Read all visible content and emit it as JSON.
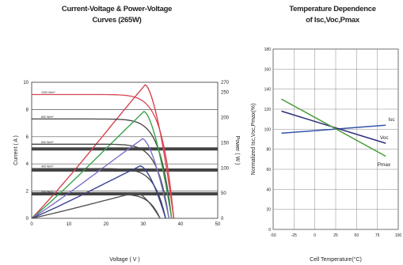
{
  "chart_data": [
    {
      "type": "line",
      "title_line1": "Current-Voltage & Power-Voltage",
      "title_line2": "Curves (265W)",
      "xlabel": "Voltage ( V )",
      "ylabel": "Current ( A )",
      "y2label": "Power ( W )",
      "xlim": [
        0,
        50
      ],
      "ylim": [
        0,
        10
      ],
      "y2lim": [
        0,
        270
      ],
      "xticks": [
        "0",
        "10",
        "20",
        "30",
        "40",
        "50"
      ],
      "yticks": [
        "0",
        "2",
        "4",
        "6",
        "8",
        "10"
      ],
      "y2ticks": [
        "0",
        "50",
        "100",
        "150",
        "200",
        "250",
        "270"
      ],
      "series": [
        {
          "name": "1000 W/m²",
          "color": "#d64550",
          "power_color": "#d64550",
          "isc": 9.1,
          "voc": 38.2,
          "vmp": 30.5,
          "pmax": 265
        },
        {
          "name": "800 W/m²",
          "color": "#444444",
          "power_color": "#3aa34a",
          "isc": 7.3,
          "voc": 37.6,
          "vmp": 30.2,
          "pmax": 212
        },
        {
          "name": "600 W/m²",
          "color": "#444444",
          "power_color": "#7a70c8",
          "isc": 5.45,
          "voc": 36.9,
          "vmp": 29.8,
          "pmax": 158
        },
        {
          "name": "400 W/m²",
          "color": "#444444",
          "power_color": "#3b3f8f",
          "isc": 3.65,
          "voc": 36.0,
          "vmp": 29.2,
          "pmax": 104
        },
        {
          "name": "200 W/m²",
          "color": "#444444",
          "power_color": "#555555",
          "isc": 1.8,
          "voc": 34.5,
          "vmp": 28.0,
          "pmax": 51
        }
      ]
    },
    {
      "type": "line",
      "title_line1": "Temperature Dependence",
      "title_line2": "of Isc,Voc,Pmax",
      "xlabel": "Cell Temperature(°C)",
      "ylabel": "Normalized Isc,Voc,Pmax(%)",
      "xlim": [
        -50,
        100
      ],
      "ylim": [
        0,
        180
      ],
      "xticks": [
        "-50",
        "-25",
        "0",
        "25",
        "50",
        "75",
        "100"
      ],
      "yticks": [
        "0",
        "20",
        "40",
        "60",
        "80",
        "100",
        "120",
        "140",
        "160",
        "180"
      ],
      "series": [
        {
          "name": "Isc",
          "color": "#3355aa",
          "x": [
            -40,
            85
          ],
          "y": [
            96,
            104
          ]
        },
        {
          "name": "Voc",
          "color": "#2d2d7a",
          "x": [
            -40,
            85
          ],
          "y": [
            118,
            86
          ]
        },
        {
          "name": "Pmax",
          "color": "#4a9a3a",
          "x": [
            -40,
            85
          ],
          "y": [
            130,
            73
          ]
        }
      ]
    }
  ]
}
